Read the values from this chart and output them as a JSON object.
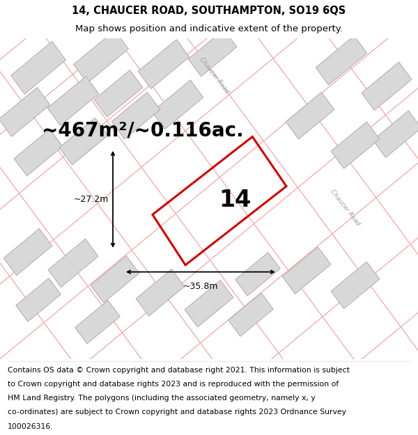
{
  "title_line1": "14, CHAUCER ROAD, SOUTHAMPTON, SO19 6QS",
  "title_line2": "Map shows position and indicative extent of the property.",
  "area_text": "~467m²/~0.116ac.",
  "property_number": "14",
  "dim_width": "~35.8m",
  "dim_height": "~27.2m",
  "footer_lines": [
    "Contains OS data © Crown copyright and database right 2021. This information is subject",
    "to Crown copyright and database rights 2023 and is reproduced with the permission of",
    "HM Land Registry. The polygons (including the associated geometry, namely x, y",
    "co-ordinates) are subject to Crown copyright and database rights 2023 Ordnance Survey",
    "100026316."
  ],
  "bg_color": "#ffffff",
  "map_bg_color": "#f8f4f4",
  "building_color": "#d8d8d8",
  "building_outline": "#c0b0b0",
  "road_line_color": "#f0b0b0",
  "property_outline": "#cc0000",
  "title_fontsize": 10.5,
  "subtitle_fontsize": 9.5,
  "area_fontsize": 20,
  "number_fontsize": 24,
  "dim_fontsize": 9,
  "footer_fontsize": 7.8
}
